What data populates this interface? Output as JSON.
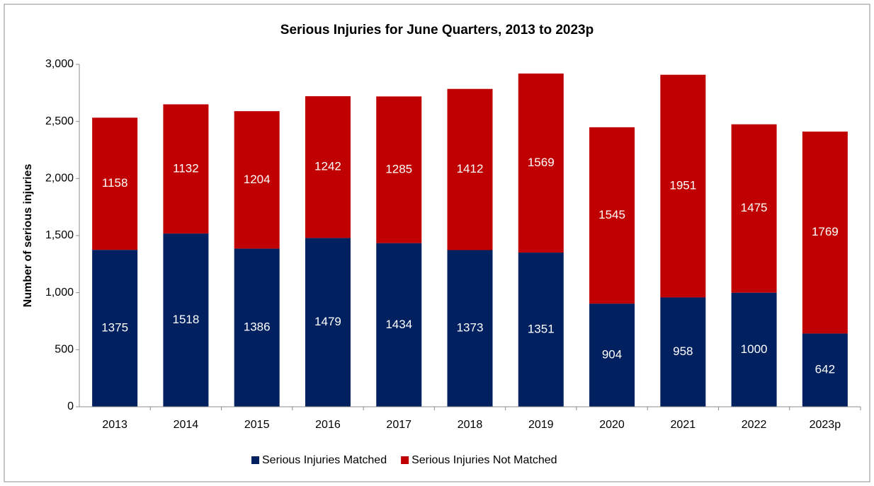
{
  "chart_data": {
    "type": "stacked_bar",
    "title": "Serious Injuries for June Quarters, 2013 to 2023p",
    "y_label": "Number of serious injuries",
    "categories": [
      "2013",
      "2014",
      "2015",
      "2016",
      "2017",
      "2018",
      "2019",
      "2020",
      "2021",
      "2022",
      "2023p"
    ],
    "series": [
      {
        "name": "Serious Injuries Matched",
        "color": "#002060",
        "values": [
          1375,
          1518,
          1386,
          1479,
          1434,
          1373,
          1351,
          904,
          958,
          1000,
          642
        ]
      },
      {
        "name": "Serious Injuries Not Matched",
        "color": "#c00000",
        "values": [
          1158,
          1132,
          1204,
          1242,
          1285,
          1412,
          1569,
          1545,
          1951,
          1475,
          1769
        ]
      }
    ],
    "ylim": [
      0,
      3000
    ],
    "yticks": [
      0,
      500,
      {
        "value": 1000,
        "label": "1,000"
      },
      {
        "value": 1500,
        "label": "1,500"
      },
      {
        "value": 2000,
        "label": "2,000"
      },
      {
        "value": 2500,
        "label": "2,500"
      },
      {
        "value": 3000,
        "label": "3,000"
      }
    ],
    "legend": "bottom"
  }
}
